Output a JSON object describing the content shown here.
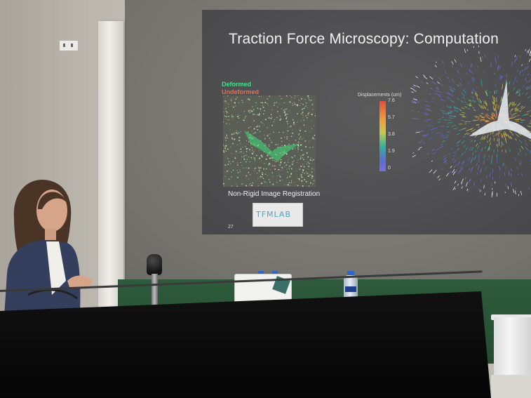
{
  "slide": {
    "title": "Traction Force Microscopy: Computation",
    "legend_deformed": "Deformed",
    "legend_undeformed": "Undeformed",
    "caption": "Non-Rigid Image Registration",
    "logo_text": "TFMLAB",
    "page_number": "27",
    "colorbar": {
      "label": "Displacements (um)",
      "ticks": [
        "7.6",
        "5.7",
        "3.8",
        "1.9",
        "0"
      ]
    }
  },
  "colors": {
    "deformed": "#44e28a",
    "undeformed": "#f06c45",
    "board": "#2e5b3c"
  }
}
